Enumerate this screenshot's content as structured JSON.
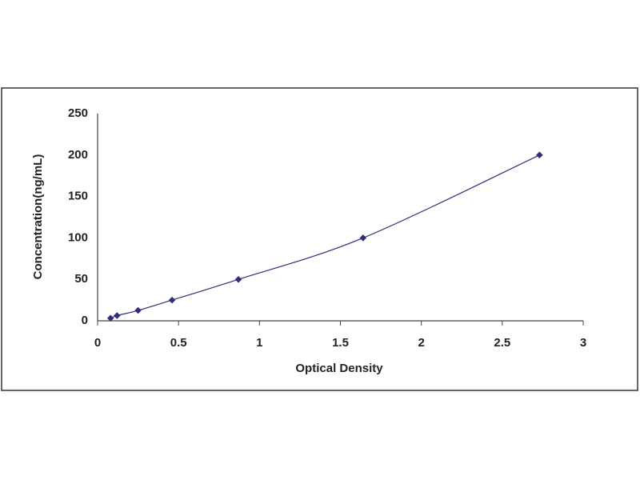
{
  "chart_data": {
    "type": "scatter",
    "x_label": "Optical Density",
    "y_label": "Concentration(ng/mL)",
    "x": [
      0.08,
      0.12,
      0.25,
      0.46,
      0.87,
      1.64,
      2.73
    ],
    "series": [
      {
        "color": "#2e2e7a",
        "values": [
          3.12,
          6.25,
          12.5,
          25,
          50,
          100,
          200
        ]
      }
    ],
    "smooth_line": true,
    "xlim": [
      0,
      3
    ],
    "xticks": [
      0,
      0.5,
      1,
      1.5,
      2,
      2.5,
      3
    ],
    "ylim": [
      0,
      250
    ],
    "yticks": [
      0,
      50,
      100,
      150,
      200,
      250
    ],
    "grid": false
  }
}
